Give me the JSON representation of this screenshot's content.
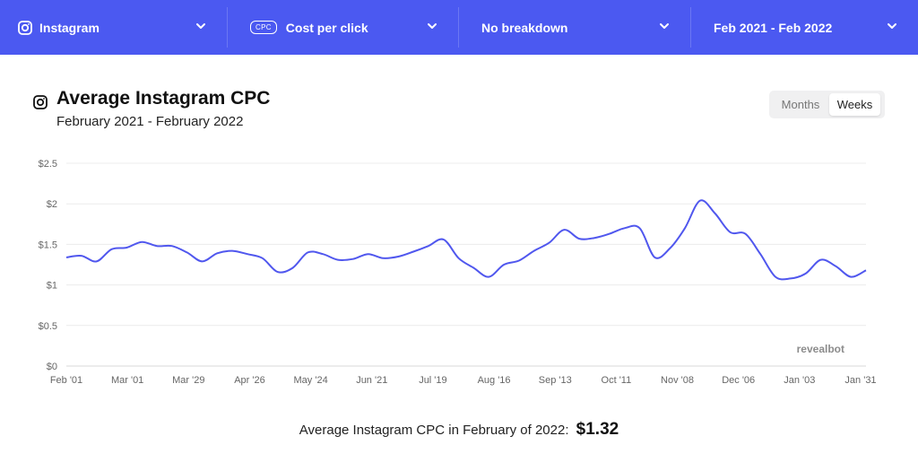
{
  "toolbar": {
    "platform": "Instagram",
    "metric_badge": "CPC",
    "metric": "Cost per click",
    "breakdown": "No breakdown",
    "date_range": "Feb 2021 - Feb 2022",
    "bar_color": "#4b59f1"
  },
  "header": {
    "icon": "instagram-icon",
    "title": "Average Instagram CPC",
    "subtitle": "February 2021 - February 2022"
  },
  "view_toggle": {
    "options": [
      "Months",
      "Weeks"
    ],
    "selected": "Weeks"
  },
  "chart_data": {
    "type": "line",
    "title": "Average Instagram CPC",
    "subtitle": "February 2021 - February 2022",
    "x_tick_labels": [
      "Feb '01",
      "Mar '01",
      "Mar '29",
      "Apr '26",
      "May '24",
      "Jun '21",
      "Jul '19",
      "Aug '16",
      "Sep '13",
      "Oct '11",
      "Nov '08",
      "Dec '06",
      "Jan '03",
      "Jan '31"
    ],
    "y_tick_labels": [
      "$0",
      "$0.5",
      "$1",
      "$1.5",
      "$2",
      "$2.5"
    ],
    "ylim": [
      0,
      2.5
    ],
    "grid": true,
    "watermark": "revealbot",
    "line_color": "#5057ee",
    "series": [
      {
        "values": [
          1.34,
          1.36,
          1.29,
          1.44,
          1.46,
          1.53,
          1.48,
          1.48,
          1.4,
          1.29,
          1.39,
          1.42,
          1.38,
          1.33,
          1.16,
          1.21,
          1.4,
          1.38,
          1.31,
          1.32,
          1.38,
          1.33,
          1.35,
          1.41,
          1.48,
          1.56,
          1.33,
          1.21,
          1.1,
          1.25,
          1.3,
          1.42,
          1.52,
          1.68,
          1.57,
          1.58,
          1.63,
          1.7,
          1.7,
          1.34,
          1.45,
          1.7,
          2.04,
          1.88,
          1.65,
          1.63,
          1.38,
          1.1,
          1.08,
          1.14,
          1.31,
          1.23,
          1.1,
          1.18
        ]
      }
    ]
  },
  "footer": {
    "text": "Average Instagram CPC in February of 2022:",
    "value": "$1.32"
  }
}
